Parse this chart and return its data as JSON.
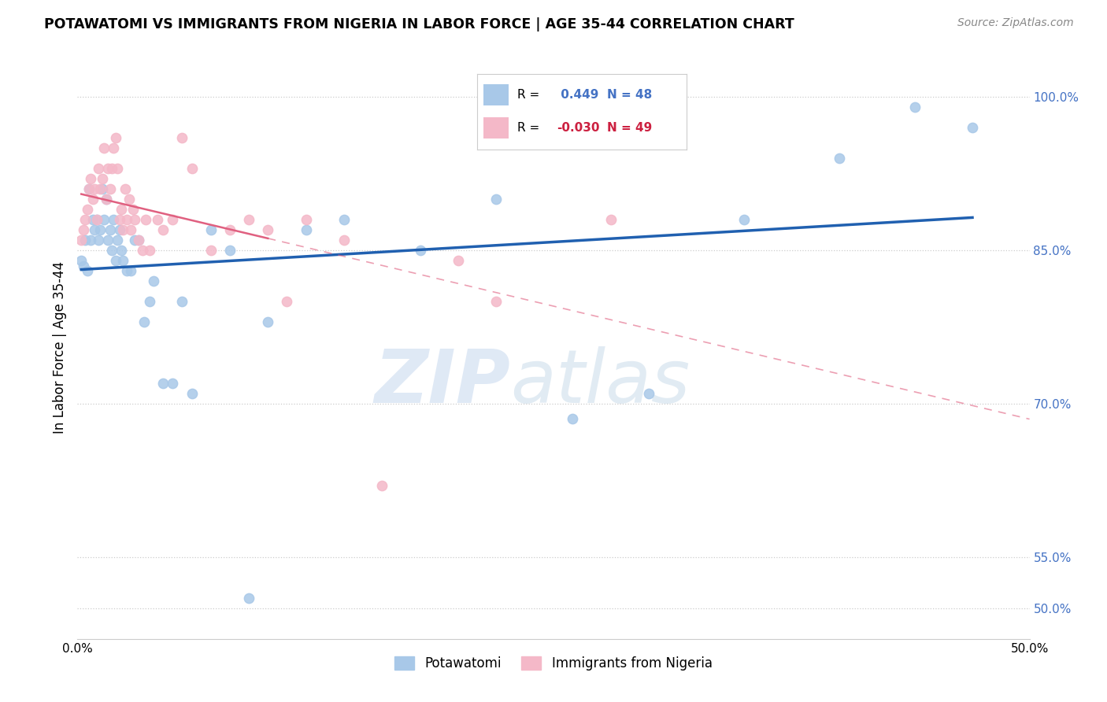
{
  "title": "POTAWATOMI VS IMMIGRANTS FROM NIGERIA IN LABOR FORCE | AGE 35-44 CORRELATION CHART",
  "source": "Source: ZipAtlas.com",
  "ylabel": "In Labor Force | Age 35-44",
  "y_ticks": [
    50.0,
    55.0,
    70.0,
    85.0,
    100.0
  ],
  "y_tick_labels": [
    "50.0%",
    "55.0%",
    "70.0%",
    "85.0%",
    "100.0%"
  ],
  "xlim": [
    0.0,
    50.0
  ],
  "ylim": [
    47.0,
    104.0
  ],
  "legend1_label": "Potawatomi",
  "legend2_label": "Immigrants from Nigeria",
  "r_blue": 0.449,
  "n_blue": 48,
  "r_pink": -0.03,
  "n_pink": 49,
  "blue_color": "#a8c8e8",
  "pink_color": "#f4b8c8",
  "blue_line_color": "#2060b0",
  "pink_line_color": "#e06080",
  "watermark_zip": "ZIP",
  "watermark_atlas": "atlas",
  "blue_points_x": [
    0.2,
    0.3,
    0.4,
    0.5,
    0.6,
    0.7,
    0.8,
    0.9,
    1.0,
    1.1,
    1.2,
    1.3,
    1.4,
    1.5,
    1.6,
    1.7,
    1.8,
    1.9,
    2.0,
    2.1,
    2.2,
    2.3,
    2.4,
    2.6,
    2.8,
    3.0,
    3.2,
    3.5,
    3.8,
    4.0,
    4.5,
    5.0,
    5.5,
    6.0,
    7.0,
    8.0,
    9.0,
    10.0,
    12.0,
    14.0,
    18.0,
    22.0,
    26.0,
    30.0,
    35.0,
    40.0,
    44.0,
    47.0
  ],
  "blue_points_y": [
    84.0,
    83.5,
    86.0,
    83.0,
    91.0,
    86.0,
    88.0,
    87.0,
    88.0,
    86.0,
    87.0,
    91.0,
    88.0,
    90.0,
    86.0,
    87.0,
    85.0,
    88.0,
    84.0,
    86.0,
    87.0,
    85.0,
    84.0,
    83.0,
    83.0,
    86.0,
    86.0,
    78.0,
    80.0,
    82.0,
    72.0,
    72.0,
    80.0,
    71.0,
    87.0,
    85.0,
    51.0,
    78.0,
    87.0,
    88.0,
    85.0,
    90.0,
    68.5,
    71.0,
    88.0,
    94.0,
    99.0,
    97.0
  ],
  "pink_points_x": [
    0.2,
    0.3,
    0.4,
    0.5,
    0.6,
    0.7,
    0.8,
    0.9,
    1.0,
    1.1,
    1.2,
    1.3,
    1.4,
    1.5,
    1.6,
    1.7,
    1.8,
    1.9,
    2.0,
    2.1,
    2.2,
    2.3,
    2.4,
    2.5,
    2.6,
    2.7,
    2.8,
    2.9,
    3.0,
    3.2,
    3.4,
    3.6,
    3.8,
    4.2,
    4.5,
    5.0,
    5.5,
    6.0,
    7.0,
    8.0,
    9.0,
    10.0,
    11.0,
    12.0,
    14.0,
    16.0,
    20.0,
    22.0,
    28.0
  ],
  "pink_points_y": [
    86.0,
    87.0,
    88.0,
    89.0,
    91.0,
    92.0,
    90.0,
    91.0,
    88.0,
    93.0,
    91.0,
    92.0,
    95.0,
    90.0,
    93.0,
    91.0,
    93.0,
    95.0,
    96.0,
    93.0,
    88.0,
    89.0,
    87.0,
    91.0,
    88.0,
    90.0,
    87.0,
    89.0,
    88.0,
    86.0,
    85.0,
    88.0,
    85.0,
    88.0,
    87.0,
    88.0,
    96.0,
    93.0,
    85.0,
    87.0,
    88.0,
    87.0,
    80.0,
    88.0,
    86.0,
    62.0,
    84.0,
    80.0,
    88.0
  ]
}
